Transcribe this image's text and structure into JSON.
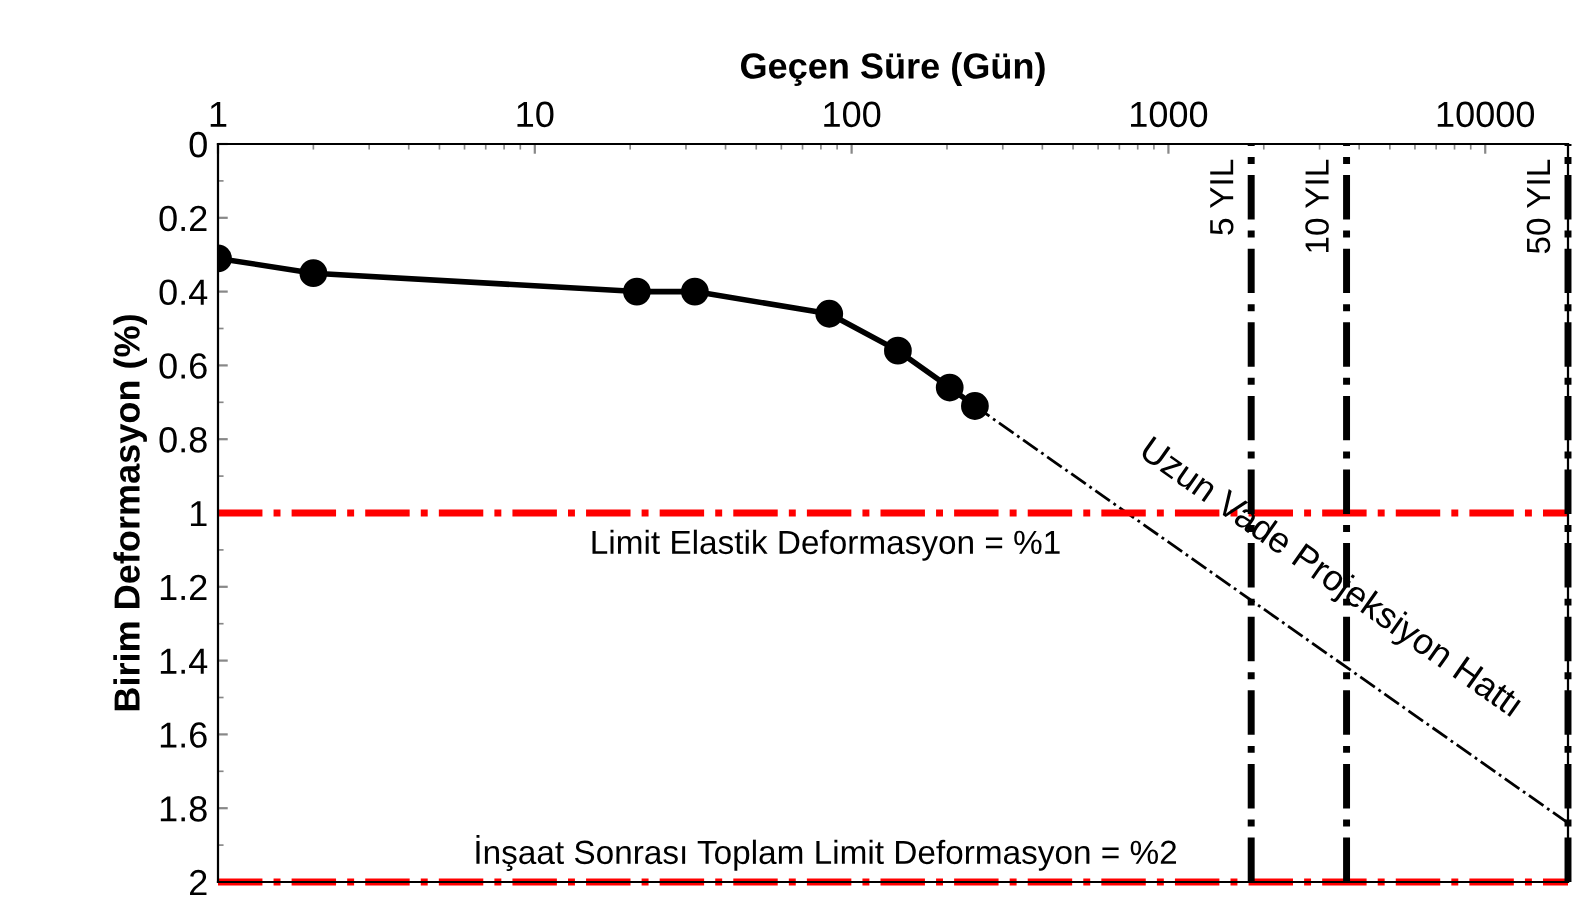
{
  "chart_data": {
    "type": "line",
    "xlabel": "Geçen Süre (Gün)",
    "ylabel": "Birim Deformasyon (%)",
    "log": "x",
    "xlim": [
      1,
      18250
    ],
    "xticks": [
      1,
      10,
      100,
      1000,
      10000
    ],
    "ylim": [
      2,
      0
    ],
    "yticks": [
      0,
      0.2,
      0.4,
      0.6,
      0.8,
      1,
      1.2,
      1.4,
      1.6,
      1.8,
      2
    ],
    "series": [
      {
        "color": "#000000",
        "marker": "circle",
        "line_style": "solid",
        "x": [
          1,
          2,
          21,
          32,
          85,
          140,
          204,
          245
        ],
        "values": [
          0.31,
          0.35,
          0.4,
          0.4,
          0.46,
          0.56,
          0.66,
          0.71
        ]
      },
      {
        "color": "#000000",
        "marker": "none",
        "line_style": "dashed",
        "x": [
          245,
          18250
        ],
        "values": [
          0.71,
          1.84
        ]
      }
    ],
    "ref_lines": [
      {
        "axis": "y",
        "value": 1,
        "label": "Limit Elastik Deformasyon = %1",
        "color": "#ff0000",
        "line_style": "dashed"
      },
      {
        "axis": "y",
        "value": 2,
        "label": "İnşaat Sonrası Toplam Limit Deformasyon = %2",
        "color": "#ff0000",
        "line_style": "dashed"
      },
      {
        "axis": "x",
        "value": 1825,
        "label": "5 YIL",
        "color": "#000000",
        "line_style": "dashed"
      },
      {
        "axis": "x",
        "value": 3650,
        "label": "10 YIL",
        "color": "#000000",
        "line_style": "dashed"
      },
      {
        "axis": "x",
        "value": 18250,
        "label": "50 YIL",
        "color": "#000000",
        "line_style": "dashed"
      }
    ],
    "annotations": [
      {
        "text": "Uzun Vade Projeksiyon Hattı",
        "x": 2650,
        "y": 1.33
      }
    ]
  }
}
